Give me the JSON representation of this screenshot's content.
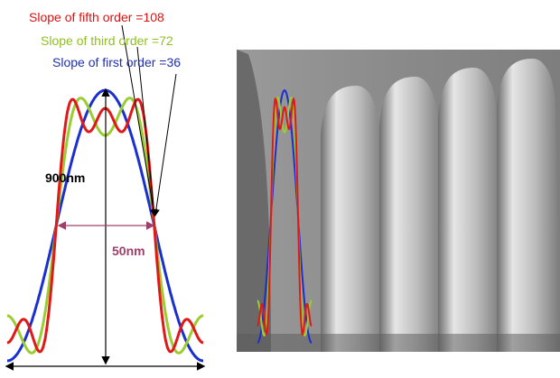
{
  "labels": {
    "fifth": "Slope of fifth order =108",
    "third": "Slope of third order =72",
    "first": "Slope of first order =36",
    "height": "900nm",
    "width": "50nm"
  }
}
